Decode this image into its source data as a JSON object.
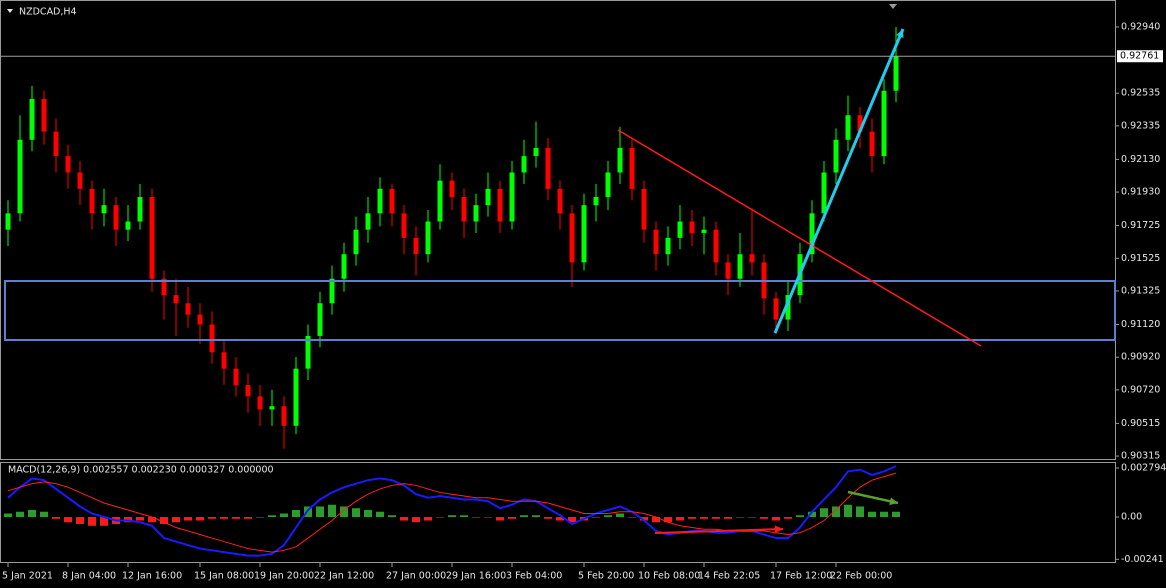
{
  "chart_data": [
    {
      "type": "candlestick",
      "title": "NZDCAD,H4",
      "categories": [
        "5 Jan 2021",
        null,
        null,
        null,
        null,
        "8 Jan 04:00",
        null,
        null,
        null,
        null,
        "12 Jan 16:00",
        null,
        null,
        null,
        null,
        null,
        "15 Jan 08:00",
        null,
        null,
        null,
        null,
        "19 Jan 20:00",
        null,
        null,
        null,
        null,
        "22 Jan 12:00",
        null,
        null,
        null,
        null,
        null,
        "27 Jan 00:00",
        null,
        null,
        null,
        null,
        "29 Jan 16:00",
        null,
        null,
        null,
        null,
        "3 Feb 04:00",
        null,
        null,
        null,
        null,
        null,
        "5 Feb 20:00",
        null,
        null,
        null,
        null,
        "10 Feb 08:00",
        null,
        null,
        null,
        null,
        "14 Feb 22:05",
        null,
        null,
        null,
        null,
        null,
        "17 Feb 12:00",
        null,
        null,
        null,
        null,
        "22 Feb 00:00",
        null,
        null,
        null,
        null,
        null
      ],
      "open": [
        0.917,
        0.918,
        0.9225,
        0.925,
        0.923,
        0.9215,
        0.9205,
        0.9195,
        0.918,
        0.9185,
        0.917,
        0.9175,
        0.919,
        0.914,
        0.913,
        0.9125,
        0.9118,
        0.9112,
        0.9095,
        0.9085,
        0.9075,
        0.9068,
        0.906,
        0.9062,
        0.905,
        0.9085,
        0.9105,
        0.9125,
        0.914,
        0.9155,
        0.917,
        0.918,
        0.9195,
        0.918,
        0.9165,
        0.9155,
        0.9175,
        0.92,
        0.919,
        0.9175,
        0.9185,
        0.9195,
        0.9175,
        0.9205,
        0.9215,
        0.922,
        0.9195,
        0.918,
        0.915,
        0.9185,
        0.919,
        0.9205,
        0.922,
        0.9195,
        0.917,
        0.9155,
        0.9165,
        0.9175,
        0.9168,
        0.917,
        0.915,
        0.914,
        0.9155,
        0.915,
        0.9128,
        0.9115,
        0.913,
        0.9155,
        0.918,
        0.9205,
        0.9225,
        0.924,
        0.923,
        0.9215,
        0.9255
      ],
      "high": [
        0.9188,
        0.924,
        0.9258,
        0.9255,
        0.9238,
        0.9222,
        0.9212,
        0.92,
        0.9195,
        0.919,
        0.9185,
        0.9198,
        0.9195,
        0.9145,
        0.914,
        0.9135,
        0.9125,
        0.912,
        0.9102,
        0.9092,
        0.9082,
        0.9075,
        0.9072,
        0.9068,
        0.9092,
        0.9112,
        0.9132,
        0.9148,
        0.9162,
        0.9178,
        0.919,
        0.9202,
        0.9198,
        0.9185,
        0.9172,
        0.9182,
        0.921,
        0.9205,
        0.9195,
        0.9192,
        0.9205,
        0.92,
        0.9212,
        0.9225,
        0.9236,
        0.9226,
        0.92,
        0.9185,
        0.9192,
        0.9198,
        0.9212,
        0.9233,
        0.9225,
        0.92,
        0.9175,
        0.9172,
        0.9185,
        0.9182,
        0.9178,
        0.9175,
        0.9155,
        0.9168,
        0.9183,
        0.9155,
        0.9132,
        0.9138,
        0.9162,
        0.9188,
        0.9212,
        0.9232,
        0.9252,
        0.9245,
        0.9238,
        0.9262,
        0.9294
      ],
      "low": [
        0.916,
        0.9175,
        0.9218,
        0.9222,
        0.9205,
        0.9195,
        0.9185,
        0.917,
        0.9172,
        0.916,
        0.9163,
        0.917,
        0.9132,
        0.9115,
        0.9105,
        0.911,
        0.91,
        0.9088,
        0.9075,
        0.9068,
        0.9058,
        0.905,
        0.905,
        0.9036,
        0.9045,
        0.9078,
        0.9098,
        0.9118,
        0.9132,
        0.9148,
        0.9162,
        0.9172,
        0.9172,
        0.9155,
        0.9142,
        0.915,
        0.917,
        0.9182,
        0.9165,
        0.9168,
        0.9178,
        0.9168,
        0.917,
        0.9198,
        0.9208,
        0.9188,
        0.917,
        0.9135,
        0.9145,
        0.9175,
        0.9182,
        0.9198,
        0.9188,
        0.9162,
        0.9145,
        0.9148,
        0.9158,
        0.916,
        0.9155,
        0.9142,
        0.913,
        0.9135,
        0.9142,
        0.9118,
        0.9106,
        0.9108,
        0.9125,
        0.915,
        0.9175,
        0.9198,
        0.9218,
        0.922,
        0.9205,
        0.921,
        0.9248
      ],
      "close": [
        0.918,
        0.9225,
        0.925,
        0.923,
        0.9215,
        0.9205,
        0.9195,
        0.918,
        0.9185,
        0.917,
        0.9175,
        0.919,
        0.914,
        0.913,
        0.9125,
        0.9118,
        0.9112,
        0.9095,
        0.9085,
        0.9075,
        0.9068,
        0.906,
        0.9062,
        0.905,
        0.9085,
        0.9105,
        0.9125,
        0.914,
        0.9155,
        0.917,
        0.918,
        0.9195,
        0.918,
        0.9165,
        0.9155,
        0.9175,
        0.92,
        0.919,
        0.9175,
        0.9185,
        0.9195,
        0.9175,
        0.9205,
        0.9215,
        0.922,
        0.9195,
        0.918,
        0.915,
        0.9185,
        0.919,
        0.9205,
        0.922,
        0.9195,
        0.917,
        0.9155,
        0.9165,
        0.9175,
        0.9168,
        0.917,
        0.915,
        0.914,
        0.9155,
        0.915,
        0.9128,
        0.9115,
        0.913,
        0.9155,
        0.918,
        0.9205,
        0.9225,
        0.924,
        0.923,
        0.9215,
        0.9255,
        0.9276
      ],
      "up_color": "#00ff00",
      "down_color": "#ff0000",
      "ylim": [
        0.90291,
        0.93105
      ],
      "yticks": [
        {
          "value": 0.9294,
          "label": "0.92940"
        },
        {
          "value": 0.92535,
          "label": "0.92535"
        },
        {
          "value": 0.92335,
          "label": "0.92335"
        },
        {
          "value": 0.9213,
          "label": "0.92130"
        },
        {
          "value": 0.9193,
          "label": "0.91930"
        },
        {
          "value": 0.91725,
          "label": "0.91725"
        },
        {
          "value": 0.91525,
          "label": "0.91525"
        },
        {
          "value": 0.91325,
          "label": "0.91325"
        },
        {
          "value": 0.9112,
          "label": "0.91120"
        },
        {
          "value": 0.9092,
          "label": "0.90920"
        },
        {
          "value": 0.9072,
          "label": "0.90720"
        },
        {
          "value": 0.90515,
          "label": "0.90515"
        },
        {
          "value": 0.90315,
          "label": "0.90315"
        }
      ],
      "current_price": 0.92761
    },
    {
      "type": "macd",
      "title": "MACD(12,26,9) 0.002557 0.002230 0.000327 0.000000",
      "histogram": {
        "up_color": "#2e9b2e",
        "down_color": "#ff1a1a",
        "values": [
          0.0002,
          0.0003,
          0.0004,
          0.0003,
          -0.0001,
          -0.0003,
          -0.0004,
          -0.0005,
          -0.0005,
          -0.0004,
          -0.0003,
          -0.0002,
          -0.0003,
          -0.0004,
          -0.0003,
          -0.0002,
          -0.0002,
          -0.0001,
          -0.0001,
          -0.0001,
          -0.0001,
          0.0,
          0.0001,
          0.0002,
          0.0004,
          0.0006,
          0.0006,
          0.0007,
          0.0006,
          0.0005,
          0.0004,
          0.0003,
          0.0001,
          -0.0002,
          -0.0003,
          -0.0002,
          0.0,
          0.0001,
          0.0001,
          0.0,
          0.0,
          -0.0002,
          -0.0001,
          0.0001,
          0.0001,
          -0.0001,
          -0.0002,
          -0.0003,
          -0.0002,
          0.0,
          0.0001,
          0.0002,
          0.0,
          -0.0002,
          -0.0003,
          -0.0003,
          -0.0002,
          -0.0001,
          -0.0001,
          -0.0001,
          -0.0001,
          0.0,
          0.0,
          -0.0001,
          -0.0002,
          -0.0001,
          0.0001,
          0.0003,
          0.0005,
          0.0006,
          0.0007,
          0.0006,
          0.0003,
          0.0003,
          0.0003
        ]
      },
      "lines": [
        {
          "color": "#1a1aff",
          "values": [
            0.0011,
            0.0017,
            0.0022,
            0.0021,
            0.0016,
            0.0011,
            0.0006,
            0.0002,
            0.0,
            -0.0002,
            -0.0002,
            -0.0003,
            -0.0005,
            -0.0012,
            -0.0014,
            -0.0016,
            -0.0018,
            -0.0019,
            -0.002,
            -0.0021,
            -0.0022,
            -0.0022,
            -0.0021,
            -0.0016,
            -0.0006,
            0.0004,
            0.001,
            0.0014,
            0.0017,
            0.0019,
            0.0021,
            0.0022,
            0.0021,
            0.0018,
            0.0013,
            0.0011,
            0.0012,
            0.0011,
            0.001,
            0.001,
            0.0009,
            0.0005,
            0.0007,
            0.001,
            0.0009,
            0.0005,
            0.0001,
            -0.0004,
            -0.0001,
            0.0002,
            0.0004,
            0.0006,
            0.0003,
            -0.0002,
            -0.0008,
            -0.001,
            -0.0009,
            -0.0008,
            -0.0008,
            -0.0009,
            -0.0009,
            -0.0008,
            -0.0008,
            -0.001,
            -0.0012,
            -0.0012,
            -0.0006,
            0.0003,
            0.001,
            0.0017,
            0.0026,
            0.0027,
            0.0024,
            0.0026,
            0.0029
          ]
        },
        {
          "color": "#ff2020",
          "values": [
            0.0015,
            0.0017,
            0.0019,
            0.002,
            0.0019,
            0.0017,
            0.0014,
            0.0011,
            0.0008,
            0.0006,
            0.0004,
            0.0002,
            0.0,
            -0.0003,
            -0.0006,
            -0.0008,
            -0.001,
            -0.0012,
            -0.0014,
            -0.0016,
            -0.0018,
            -0.0019,
            -0.002,
            -0.0019,
            -0.0017,
            -0.0012,
            -0.0007,
            -0.0002,
            0.0004,
            0.0009,
            0.0013,
            0.0016,
            0.0018,
            0.0019,
            0.0018,
            0.0016,
            0.0014,
            0.0013,
            0.0012,
            0.0011,
            0.0011,
            0.001,
            0.0009,
            0.0009,
            0.0009,
            0.0008,
            0.0006,
            0.0004,
            0.0002,
            0.0002,
            0.0002,
            0.0003,
            0.0003,
            0.0002,
            0.0,
            -0.0003,
            -0.0005,
            -0.0006,
            -0.0007,
            -0.0007,
            -0.0008,
            -0.0008,
            -0.0008,
            -0.0008,
            -0.0009,
            -0.001,
            -0.0009,
            -0.0006,
            -0.0002,
            0.0004,
            0.0011,
            0.0017,
            0.0021,
            0.0023,
            0.0025
          ]
        }
      ],
      "ylim": [
        -0.002566,
        0.003136
      ],
      "yticks": [
        0.002794,
        {
          "value": 0,
          "label": "0.00"
        },
        -0.00241
      ]
    }
  ]
}
